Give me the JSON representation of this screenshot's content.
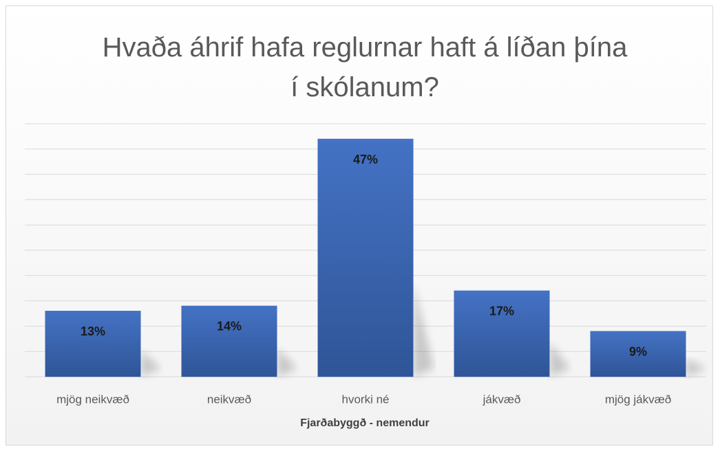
{
  "chart_data": {
    "type": "bar",
    "title": "Hvaða áhrif hafa reglurnar haft á líðan þína í skólanum?",
    "x_label": "Fjarðabyggð - nemendur",
    "categories": [
      "mjög neikvæð",
      "neikvæð",
      "hvorki né",
      "jákvæð",
      "mjög jákvæð"
    ],
    "values": [
      13,
      14,
      47,
      17,
      9
    ],
    "value_labels": [
      "13%",
      "14%",
      "47%",
      "17%",
      "9%"
    ],
    "color": "#4472c4",
    "ylim": [
      0,
      50
    ],
    "yticks": [
      0,
      5,
      10,
      15,
      20,
      25,
      30,
      35,
      40,
      45,
      50
    ],
    "grid": true
  }
}
